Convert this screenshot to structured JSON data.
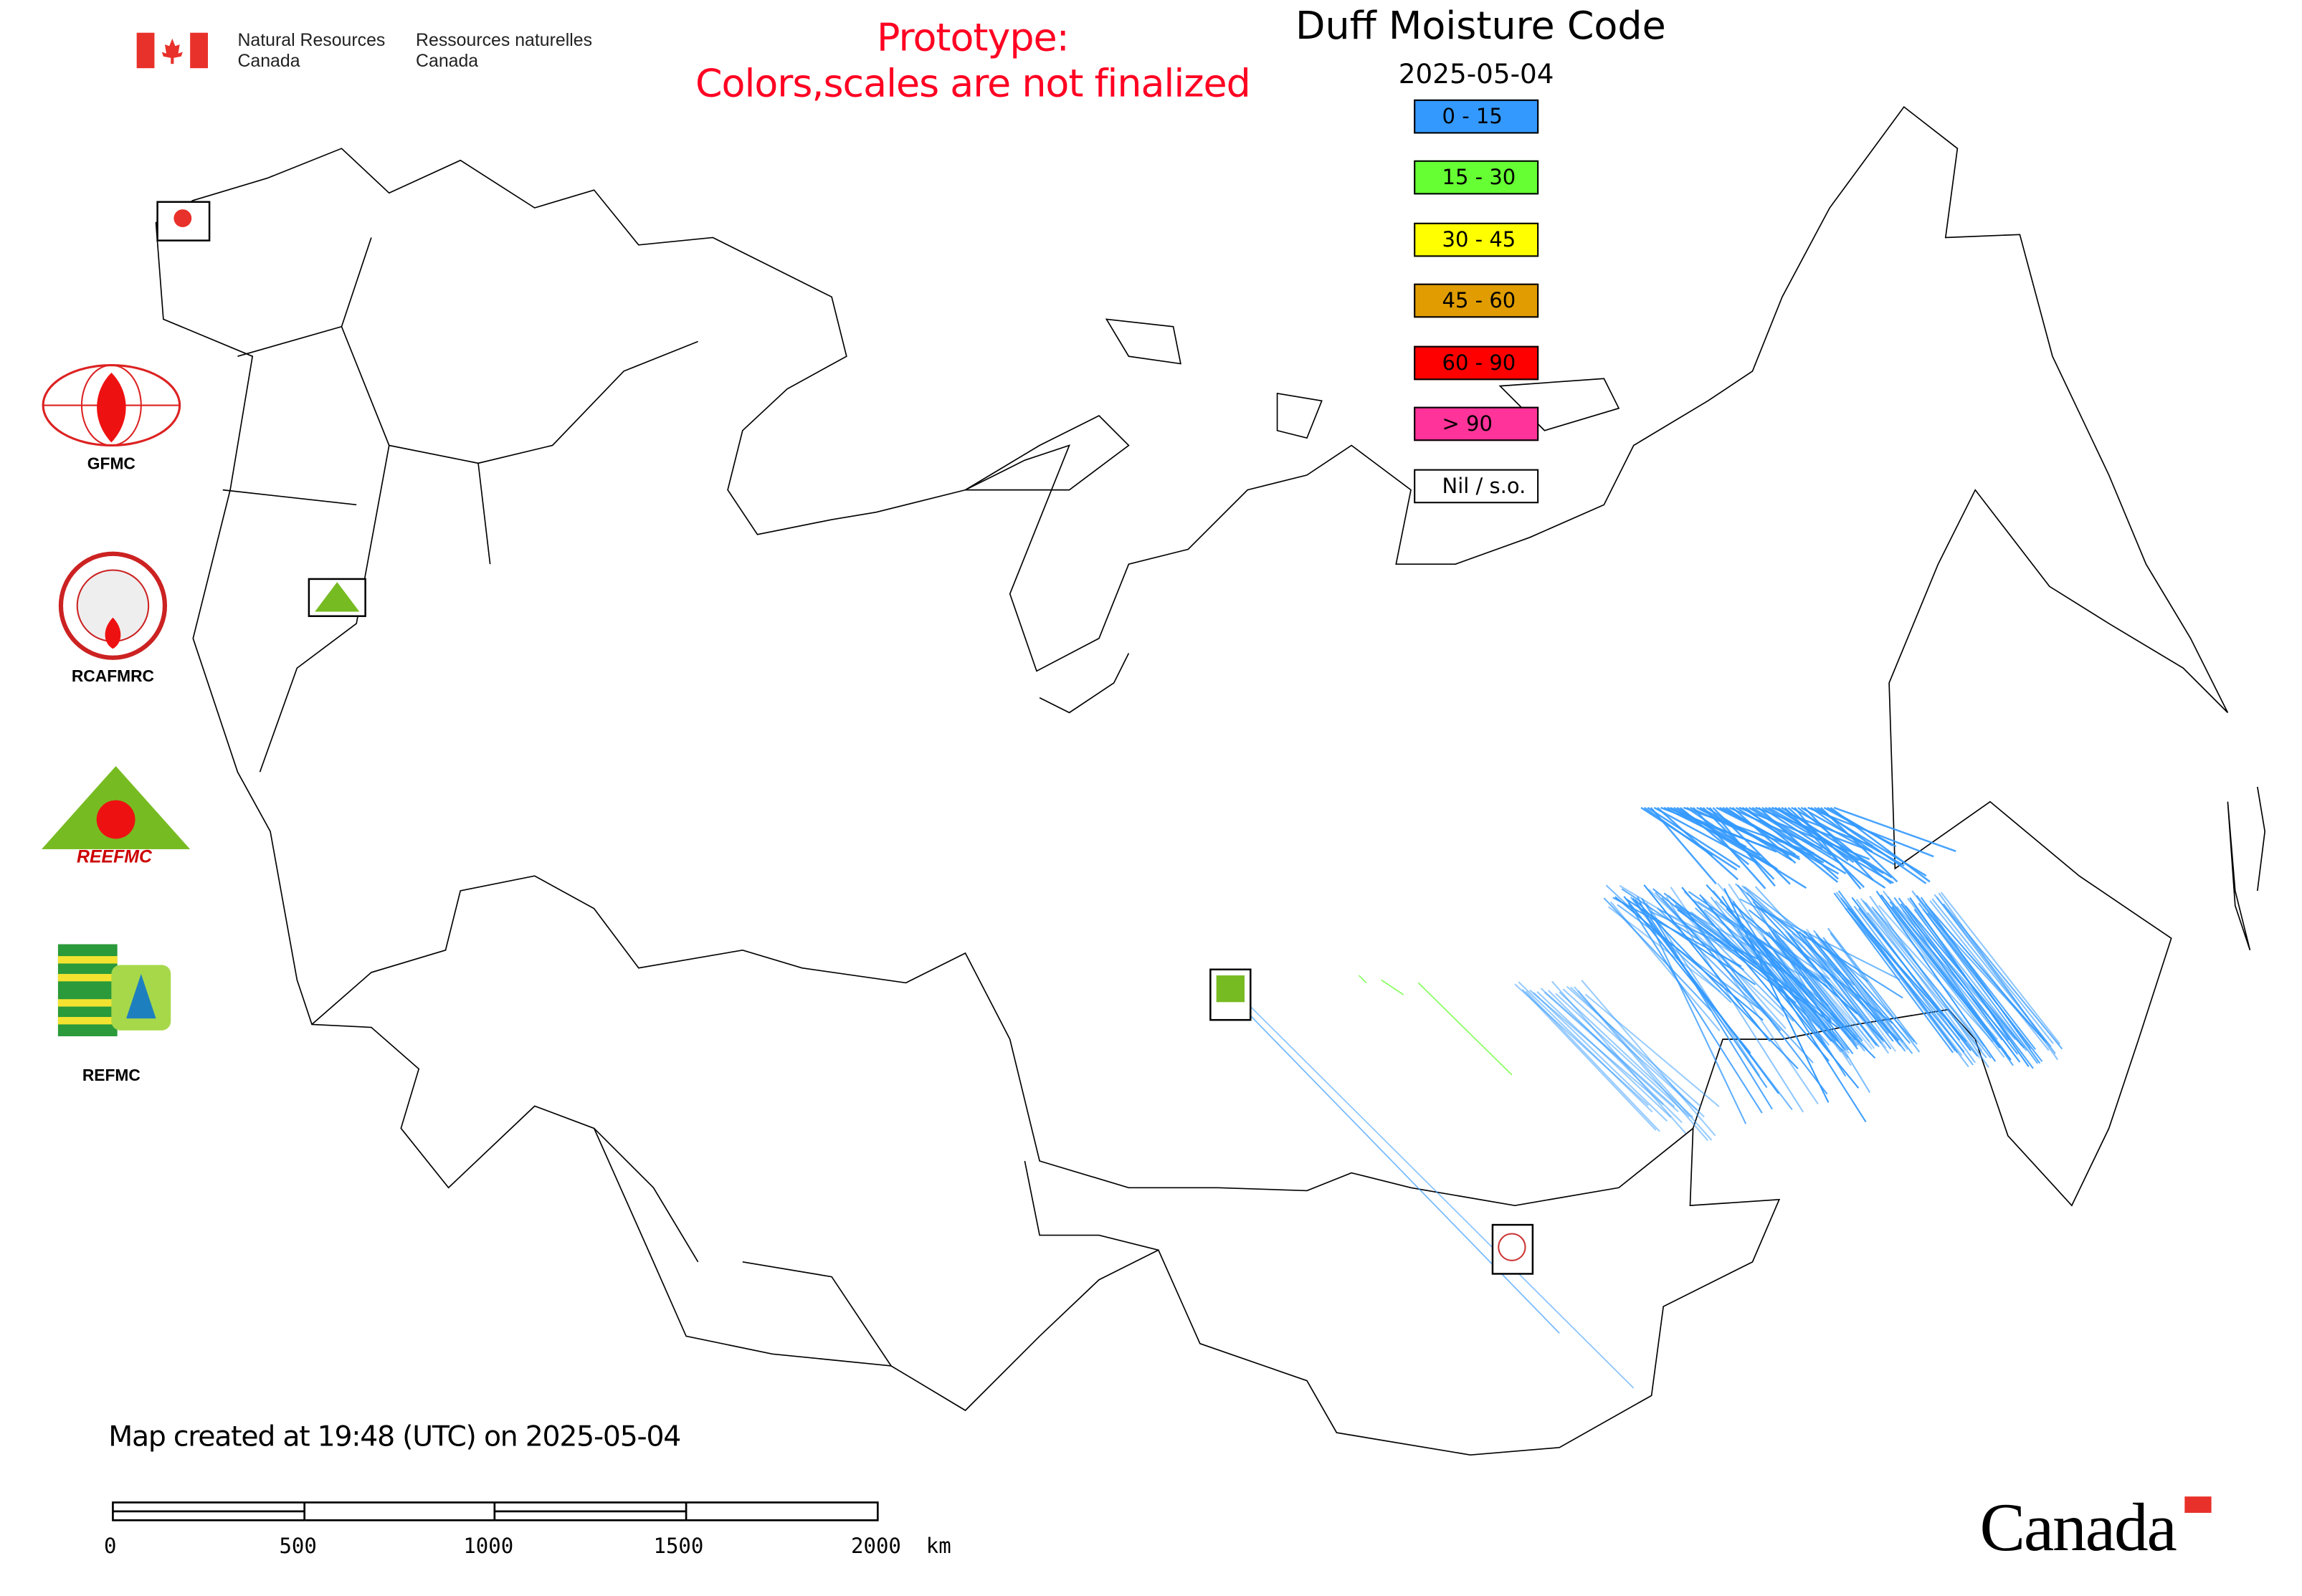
{
  "header": {
    "agency_en_line1": "Natural Resources",
    "agency_en_line2": "Canada",
    "agency_fr_line1": "Ressources naturelles",
    "agency_fr_line2": "Canada",
    "prototype_line1": "Prototype:",
    "prototype_line2": "Colors,scales are not finalized",
    "prototype_color": "#ff0022"
  },
  "map": {
    "title": "Duff Moisture Code",
    "date": "2025-05-04",
    "legend": [
      {
        "label": "0 - 15",
        "color": "#3399ff"
      },
      {
        "label": "15 - 30",
        "color": "#66ff33"
      },
      {
        "label": "30 - 45",
        "color": "#ffff00"
      },
      {
        "label": "45 - 60",
        "color": "#e09c00"
      },
      {
        "label": "60 - 90",
        "color": "#ff0000"
      },
      {
        "label": "> 90",
        "color": "#ff3399"
      },
      {
        "label": "Nil / s.o.",
        "color": "#ffffff"
      }
    ]
  },
  "logos": {
    "gfmc": "GFMC",
    "rcafmrc": "RCAFMRC",
    "reefmc": "REEFMC",
    "refmc": "REFMC"
  },
  "footer": {
    "created": "Map created at 19:48 (UTC) on 2025-05-04",
    "scale_labels": [
      "0",
      "500",
      "1000",
      "1500",
      "2000  km"
    ],
    "wordmark": "Canada"
  }
}
